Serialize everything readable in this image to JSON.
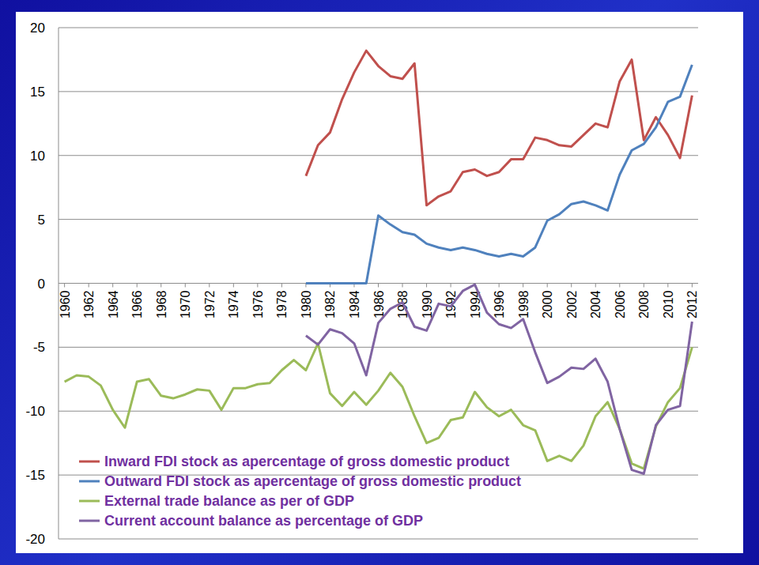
{
  "chart_data": {
    "type": "line",
    "x": [
      1960,
      1961,
      1962,
      1963,
      1964,
      1965,
      1966,
      1967,
      1968,
      1969,
      1970,
      1971,
      1972,
      1973,
      1974,
      1975,
      1976,
      1977,
      1978,
      1979,
      1980,
      1981,
      1982,
      1983,
      1984,
      1985,
      1986,
      1987,
      1988,
      1989,
      1990,
      1991,
      1992,
      1993,
      1994,
      1995,
      1996,
      1997,
      1998,
      1999,
      2000,
      2001,
      2002,
      2003,
      2004,
      2005,
      2006,
      2007,
      2008,
      2009,
      2010,
      2011,
      2012
    ],
    "xlim": [
      1959.5,
      2012.5
    ],
    "xticks": [
      1960,
      1962,
      1964,
      1966,
      1968,
      1970,
      1972,
      1974,
      1976,
      1978,
      1980,
      1982,
      1984,
      1986,
      1988,
      1990,
      1992,
      1994,
      1996,
      1998,
      2000,
      2002,
      2004,
      2006,
      2008,
      2010,
      2012
    ],
    "ylim": [
      -20,
      20
    ],
    "yticks": [
      -20,
      -15,
      -10,
      -5,
      0,
      5,
      10,
      15,
      20
    ],
    "grid": true,
    "legend": "lower left",
    "series": [
      {
        "name": "Inward FDI stock as apercentage of gross domestic product",
        "color": "#c0504d",
        "values": [
          null,
          null,
          null,
          null,
          null,
          null,
          null,
          null,
          null,
          null,
          null,
          null,
          null,
          null,
          null,
          null,
          null,
          null,
          null,
          null,
          8.4,
          10.8,
          11.8,
          14.4,
          16.5,
          18.2,
          17.0,
          16.2,
          16.0,
          17.2,
          6.1,
          6.8,
          7.2,
          8.7,
          8.9,
          8.4,
          8.7,
          9.7,
          9.7,
          11.4,
          11.2,
          10.8,
          10.7,
          11.6,
          12.5,
          12.2,
          15.8,
          17.5,
          11.2,
          13.0,
          11.6,
          9.8,
          14.7
        ]
      },
      {
        "name": "Outward FDI stock as apercentage of gross domestic product",
        "color": "#4f81bd",
        "values": [
          null,
          null,
          null,
          null,
          null,
          null,
          null,
          null,
          null,
          null,
          null,
          null,
          null,
          null,
          null,
          null,
          null,
          null,
          null,
          null,
          0,
          0,
          0,
          0,
          0,
          0,
          5.3,
          4.6,
          4.0,
          3.8,
          3.1,
          2.8,
          2.6,
          2.8,
          2.6,
          2.3,
          2.1,
          2.3,
          2.1,
          2.8,
          4.9,
          5.4,
          6.2,
          6.4,
          6.1,
          5.7,
          8.5,
          10.4,
          10.9,
          12.2,
          14.2,
          14.6,
          17.1
        ]
      },
      {
        "name": "External trade balance as per of GDP",
        "color": "#9bbb59",
        "values": [
          -7.7,
          -7.2,
          -7.3,
          -8.0,
          -9.9,
          -11.3,
          -7.7,
          -7.5,
          -8.8,
          -9.0,
          -8.7,
          -8.3,
          -8.4,
          -9.9,
          -8.2,
          -8.2,
          -7.9,
          -7.8,
          -6.8,
          -6.0,
          -6.8,
          -4.7,
          -8.6,
          -9.6,
          -8.5,
          -9.5,
          -8.4,
          -7.0,
          -8.1,
          -10.4,
          -12.5,
          -12.1,
          -10.7,
          -10.5,
          -8.5,
          -9.7,
          -10.4,
          -9.9,
          -11.1,
          -11.5,
          -13.9,
          -13.5,
          -13.9,
          -12.7,
          -10.4,
          -9.3,
          -11.4,
          -14.1,
          -14.5,
          -11.2,
          -9.3,
          -8.2,
          -5.0
        ]
      },
      {
        "name": "Current account balance as percentage of GDP",
        "color": "#8064a2",
        "values": [
          null,
          null,
          null,
          null,
          null,
          null,
          null,
          null,
          null,
          null,
          null,
          null,
          null,
          null,
          null,
          null,
          null,
          null,
          null,
          null,
          -4.1,
          -4.8,
          -3.6,
          -3.9,
          -4.7,
          -7.2,
          -3.1,
          -2.0,
          -1.5,
          -3.4,
          -3.7,
          -1.6,
          -1.8,
          -0.6,
          -0.1,
          -2.3,
          -3.2,
          -3.5,
          -2.8,
          -5.4,
          -7.8,
          -7.3,
          -6.6,
          -6.7,
          -5.9,
          -7.7,
          -11.4,
          -14.6,
          -14.9,
          -11.1,
          -9.9,
          -9.6,
          -3.0
        ]
      }
    ]
  }
}
